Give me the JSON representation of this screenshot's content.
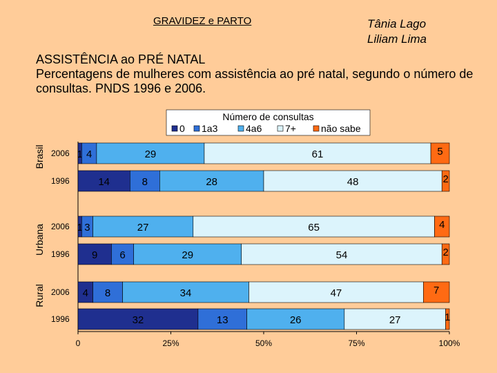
{
  "header": {
    "left_title": "GRAVIDEZ e PARTO",
    "authors": [
      "Tânia Lago",
      "Liliam Lima"
    ]
  },
  "chart_data": {
    "type": "bar",
    "orientation": "horizontal",
    "stacked": "percent",
    "title": "ASSISTÊNCIA ao PRÉ NATAL",
    "subtitle": "Percentagens de mulheres com assistência ao pré natal, segundo o número de consultas. PNDS 1996 e 2006.",
    "legend_title": "Número de consultas",
    "legend_position": "top",
    "groups": [
      {
        "name": "Brasil",
        "rows": [
          "2006",
          "1996"
        ]
      },
      {
        "name": "Urbana",
        "rows": [
          "2006",
          "1996"
        ]
      },
      {
        "name": "Rural",
        "rows": [
          "2006",
          "1996"
        ]
      }
    ],
    "xticks": [
      "0",
      "25%",
      "50%",
      "75%",
      "100%"
    ],
    "xlim": [
      0,
      100
    ],
    "series": [
      {
        "name": "0",
        "color": "#1F2F8F",
        "values": [
          1,
          14,
          1,
          9,
          4,
          32
        ],
        "labels": [
          "1",
          "14",
          "1",
          "9",
          "4",
          "32"
        ]
      },
      {
        "name": "1a3",
        "color": "#2F6FD8",
        "values": [
          4,
          8,
          3,
          6,
          8,
          13
        ],
        "labels": [
          "4",
          "8",
          "3",
          "6",
          "8",
          "13"
        ]
      },
      {
        "name": "4a6",
        "color": "#4FB0EE",
        "values": [
          29,
          28,
          27,
          29,
          34,
          26
        ],
        "labels": [
          "29",
          "28",
          "27",
          "29",
          "34",
          "26"
        ]
      },
      {
        "name": "7+",
        "color": "#DCF4FC",
        "values": [
          61,
          48,
          65,
          54,
          47,
          27
        ],
        "labels": [
          "61",
          "48",
          "65",
          "54",
          "47",
          "27"
        ]
      },
      {
        "name": "não sabe",
        "color": "#FF6A13",
        "values": [
          5,
          2,
          4,
          2,
          7,
          1
        ],
        "labels": [
          "5",
          "2",
          "4",
          "2",
          "7",
          "1"
        ]
      }
    ]
  }
}
